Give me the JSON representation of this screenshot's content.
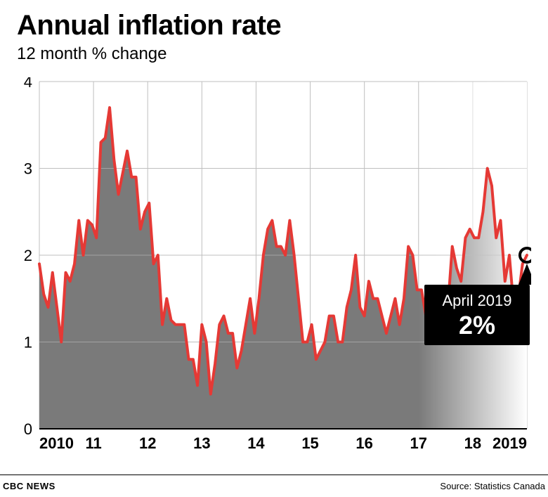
{
  "title": "Annual inflation rate",
  "subtitle": "12 month % change",
  "footer_left": "CBC NEWS",
  "footer_right": "Source: Statistics Canada",
  "chart": {
    "type": "area-line",
    "background_color": "#ffffff",
    "grid_color": "#bfbfbf",
    "baseline_color": "#000000",
    "area_color": "#7a7a7a",
    "line_color": "#e53935",
    "line_width": 4,
    "ylim": [
      0,
      4
    ],
    "ytick_step": 1,
    "yticks": [
      "0",
      "1",
      "2",
      "3",
      "4"
    ],
    "ytick_fontsize": 22,
    "ytick_color": "#000000",
    "xticks": [
      "2010",
      "11",
      "12",
      "13",
      "14",
      "15",
      "16",
      "17",
      "18",
      "2019"
    ],
    "xtick_fontsize": 22,
    "xtick_color": "#000000",
    "xtick_fontweight": 700,
    "fade_gradient": {
      "from": "17",
      "to": "2019"
    },
    "callout": {
      "label_line1": "April 2019",
      "label_line2": "2%",
      "line1_fontsize": 22,
      "line2_fontsize": 36,
      "line2_fontweight": 700,
      "marker_stroke": "#000000",
      "marker_stroke_width": 4,
      "marker_r": 10,
      "box_fill": "#000000",
      "text_color": "#ffffff",
      "point_index": 111
    },
    "values": [
      1.9,
      1.55,
      1.4,
      1.8,
      1.4,
      1.0,
      1.8,
      1.7,
      1.9,
      2.4,
      2.0,
      2.4,
      2.35,
      2.2,
      3.3,
      3.35,
      3.7,
      3.1,
      2.7,
      2.95,
      3.2,
      2.9,
      2.9,
      2.3,
      2.5,
      2.6,
      1.9,
      2.0,
      1.2,
      1.5,
      1.25,
      1.2,
      1.2,
      1.2,
      0.8,
      0.8,
      0.5,
      1.2,
      1.0,
      0.4,
      0.75,
      1.2,
      1.3,
      1.1,
      1.1,
      0.7,
      0.9,
      1.2,
      1.5,
      1.1,
      1.5,
      2.0,
      2.3,
      2.4,
      2.1,
      2.1,
      2.0,
      2.4,
      2.0,
      1.5,
      1.0,
      1.0,
      1.2,
      0.8,
      0.9,
      1.0,
      1.3,
      1.3,
      1.0,
      1.0,
      1.4,
      1.6,
      2.0,
      1.4,
      1.3,
      1.7,
      1.5,
      1.5,
      1.3,
      1.1,
      1.3,
      1.5,
      1.2,
      1.5,
      2.1,
      2.0,
      1.6,
      1.6,
      1.3,
      1.0,
      1.2,
      1.4,
      1.6,
      1.4,
      2.1,
      1.85,
      1.7,
      2.2,
      2.3,
      2.2,
      2.2,
      2.5,
      3.0,
      2.8,
      2.2,
      2.4,
      1.7,
      2.0,
      1.4,
      1.5,
      1.9,
      2.0
    ]
  }
}
